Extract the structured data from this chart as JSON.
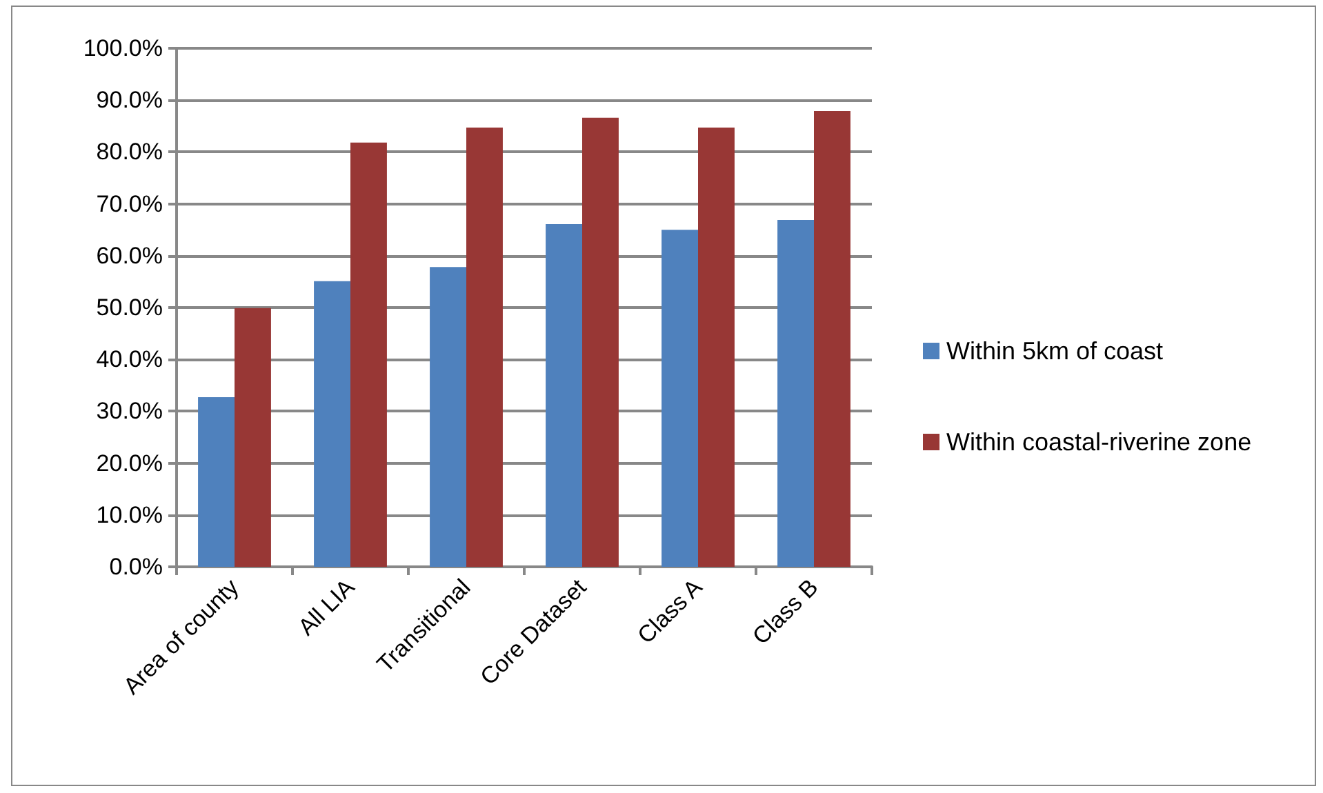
{
  "chart_data": {
    "type": "bar",
    "categories": [
      "Area of county",
      "All LIA",
      "Transitional",
      "Core Dataset",
      "Class A",
      "Class B"
    ],
    "series": [
      {
        "name": "Within 5km of coast",
        "color": "#4f81bd",
        "values": [
          32.7,
          55.1,
          57.8,
          66.1,
          65.0,
          66.9
        ]
      },
      {
        "name": "Within coastal-riverine zone",
        "color": "#983735",
        "values": [
          49.9,
          81.8,
          84.7,
          86.6,
          84.7,
          87.9
        ]
      }
    ],
    "ylim": [
      0,
      100
    ],
    "yticks": [
      {
        "value": 0,
        "label": "0.0%"
      },
      {
        "value": 10,
        "label": "10.0%"
      },
      {
        "value": 20,
        "label": "20.0%"
      },
      {
        "value": 30,
        "label": "30.0%"
      },
      {
        "value": 40,
        "label": "40.0%"
      },
      {
        "value": 50,
        "label": "50.0%"
      },
      {
        "value": 60,
        "label": "60.0%"
      },
      {
        "value": 70,
        "label": "70.0%"
      },
      {
        "value": 80,
        "label": "80.0%"
      },
      {
        "value": 90,
        "label": "90.0%"
      },
      {
        "value": 100,
        "label": "100.0%"
      }
    ],
    "grid": "y",
    "legend": "right"
  }
}
